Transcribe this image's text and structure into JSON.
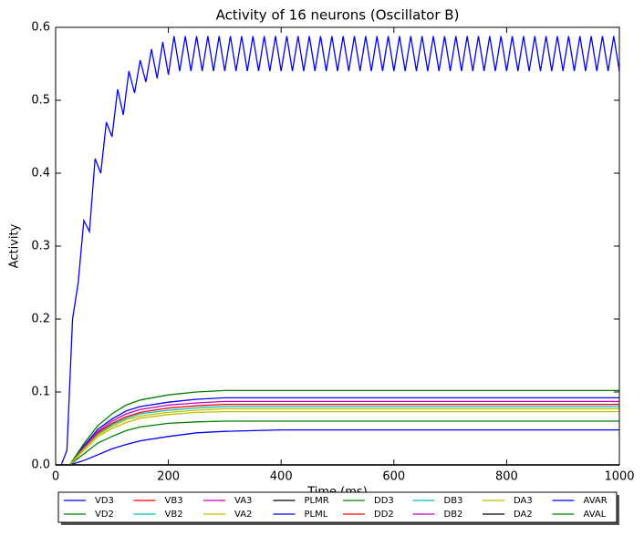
{
  "chart_data": {
    "type": "line",
    "title": "Activity of 16 neurons (Oscillator B)",
    "x_label": "Time (ms)",
    "y_label": "Activity",
    "x": [
      0,
      25,
      50,
      75,
      100,
      125,
      150,
      200,
      250,
      300,
      400,
      500,
      600,
      700,
      800,
      900,
      1000
    ],
    "xlim": [
      0,
      1000
    ],
    "xticks": [
      0,
      200,
      400,
      600,
      800,
      1000
    ],
    "ylim": [
      0,
      0.6
    ],
    "yticks": [
      {
        "value": 0,
        "label": "0.0"
      },
      {
        "value": 0.1,
        "label": "0.1"
      },
      {
        "value": 0.2,
        "label": "0.2"
      },
      {
        "value": 0.3,
        "label": "0.3"
      },
      {
        "value": 0.4,
        "label": "0.4"
      },
      {
        "value": 0.5,
        "label": "0.5"
      },
      {
        "value": 0.6,
        "label": "0.6"
      }
    ],
    "legend": "below",
    "series": [
      {
        "name": "VD3",
        "color": "#0000ff",
        "values": [
          0,
          0,
          0.026,
          0.049,
          0.063,
          0.074,
          0.08,
          0.086,
          0.09,
          0.092,
          0.092,
          0.092,
          0.092,
          0.092,
          0.092,
          0.092,
          0.092
        ]
      },
      {
        "name": "VD2",
        "color": "#008000",
        "values": [
          0,
          0,
          0.015,
          0.03,
          0.039,
          0.047,
          0.052,
          0.057,
          0.059,
          0.06,
          0.06,
          0.06,
          0.06,
          0.06,
          0.06,
          0.06,
          0.06
        ]
      },
      {
        "name": "VB3",
        "color": "#ff0000",
        "values": [
          0,
          0,
          0.023,
          0.044,
          0.057,
          0.066,
          0.072,
          0.078,
          0.081,
          0.083,
          0.083,
          0.083,
          0.083,
          0.083,
          0.083,
          0.083,
          0.083
        ]
      },
      {
        "name": "VB2",
        "color": "#00bfbf",
        "values": [
          0,
          0,
          0.022,
          0.042,
          0.055,
          0.064,
          0.07,
          0.075,
          0.078,
          0.08,
          0.08,
          0.08,
          0.08,
          0.08,
          0.08,
          0.08,
          0.08
        ]
      },
      {
        "name": "VA3",
        "color": "#bf00bf",
        "values": [
          0,
          0,
          0.024,
          0.046,
          0.06,
          0.07,
          0.076,
          0.082,
          0.085,
          0.087,
          0.087,
          0.087,
          0.087,
          0.087,
          0.087,
          0.087,
          0.087
        ]
      },
      {
        "name": "VA2",
        "color": "#bfbf00",
        "values": [
          0,
          0,
          0.02,
          0.039,
          0.05,
          0.058,
          0.064,
          0.069,
          0.072,
          0.073,
          0.073,
          0.073,
          0.073,
          0.073,
          0.073,
          0.073,
          0.073
        ]
      },
      {
        "name": "PLMR",
        "color": "#000000",
        "values": [
          0,
          0,
          0,
          0,
          0,
          0,
          0,
          0,
          0,
          0,
          0,
          0,
          0,
          0,
          0,
          0,
          0
        ]
      },
      {
        "name": "PLML",
        "color": "#0000ff",
        "values": [
          0,
          0,
          0.006,
          0.014,
          0.022,
          0.028,
          0.033,
          0.039,
          0.044,
          0.046,
          0.048,
          0.048,
          0.048,
          0.048,
          0.048,
          0.048,
          0.048
        ]
      },
      {
        "name": "DD3",
        "color": "#008000",
        "values": [
          0,
          0,
          0.029,
          0.054,
          0.07,
          0.082,
          0.089,
          0.096,
          0.1,
          0.102,
          0.102,
          0.102,
          0.102,
          0.102,
          0.102,
          0.102,
          0.102
        ]
      },
      {
        "name": "DD2",
        "color": "#ff0000",
        "values": [
          0,
          0,
          0,
          0,
          0,
          0,
          0,
          0,
          0,
          0,
          0,
          0,
          0,
          0,
          0,
          0,
          0
        ]
      },
      {
        "name": "DB3",
        "color": "#00bfbf",
        "values": [
          0,
          0,
          0,
          0,
          0,
          0,
          0,
          0,
          0,
          0,
          0,
          0,
          0,
          0,
          0,
          0,
          0
        ]
      },
      {
        "name": "DB2",
        "color": "#bf00bf",
        "values": [
          0,
          0,
          0,
          0,
          0,
          0,
          0,
          0,
          0,
          0,
          0,
          0,
          0,
          0,
          0,
          0,
          0
        ]
      },
      {
        "name": "DA3",
        "color": "#bfbf00",
        "values": [
          0,
          0,
          0.022,
          0.041,
          0.053,
          0.062,
          0.067,
          0.072,
          0.075,
          0.077,
          0.077,
          0.077,
          0.077,
          0.077,
          0.077,
          0.077,
          0.077
        ]
      },
      {
        "name": "DA2",
        "color": "#000000",
        "values": [
          0,
          0,
          0,
          0,
          0,
          0,
          0,
          0,
          0,
          0,
          0,
          0,
          0,
          0,
          0,
          0,
          0
        ]
      },
      {
        "name": "AVAR",
        "color": "#0000ff",
        "x": [
          0,
          10,
          20,
          30,
          40,
          50,
          60,
          70,
          80,
          90,
          100,
          110,
          120,
          130,
          140,
          150,
          160,
          170,
          180,
          190,
          200,
          210,
          220,
          230,
          240,
          250,
          260,
          270,
          280,
          290,
          300,
          310,
          320,
          330,
          340,
          350,
          360,
          370,
          380,
          390,
          400,
          410,
          420,
          430,
          440,
          450,
          460,
          470,
          480,
          490,
          500,
          510,
          520,
          530,
          540,
          550,
          560,
          570,
          580,
          590,
          600,
          610,
          620,
          630,
          640,
          650,
          660,
          670,
          680,
          690,
          700,
          710,
          720,
          730,
          740,
          750,
          760,
          770,
          780,
          790,
          800,
          810,
          820,
          830,
          840,
          850,
          860,
          870,
          880,
          890,
          900,
          910,
          920,
          930,
          940,
          950,
          960,
          970,
          980,
          990,
          1000
        ],
        "values": [
          0,
          0,
          0.02,
          0.2,
          0.25,
          0.335,
          0.32,
          0.42,
          0.4,
          0.47,
          0.45,
          0.515,
          0.48,
          0.54,
          0.51,
          0.555,
          0.525,
          0.57,
          0.53,
          0.58,
          0.535,
          0.588,
          0.54,
          0.588,
          0.54,
          0.588,
          0.54,
          0.588,
          0.54,
          0.588,
          0.54,
          0.588,
          0.54,
          0.588,
          0.54,
          0.588,
          0.54,
          0.588,
          0.54,
          0.588,
          0.54,
          0.588,
          0.54,
          0.588,
          0.54,
          0.588,
          0.54,
          0.588,
          0.54,
          0.588,
          0.54,
          0.588,
          0.54,
          0.588,
          0.54,
          0.588,
          0.54,
          0.588,
          0.54,
          0.588,
          0.54,
          0.588,
          0.54,
          0.588,
          0.54,
          0.588,
          0.54,
          0.588,
          0.54,
          0.588,
          0.54,
          0.588,
          0.54,
          0.588,
          0.54,
          0.588,
          0.54,
          0.588,
          0.54,
          0.588,
          0.54,
          0.588,
          0.54,
          0.588,
          0.54,
          0.588,
          0.54,
          0.588,
          0.54,
          0.588,
          0.54,
          0.588,
          0.54,
          0.588,
          0.54,
          0.588,
          0.54,
          0.588,
          0.54,
          0.588,
          0.54
        ]
      },
      {
        "name": "AVAL",
        "color": "#008000",
        "values": [
          0,
          0,
          0,
          0,
          0,
          0,
          0,
          0,
          0,
          0,
          0,
          0,
          0,
          0,
          0,
          0,
          0
        ]
      }
    ]
  }
}
